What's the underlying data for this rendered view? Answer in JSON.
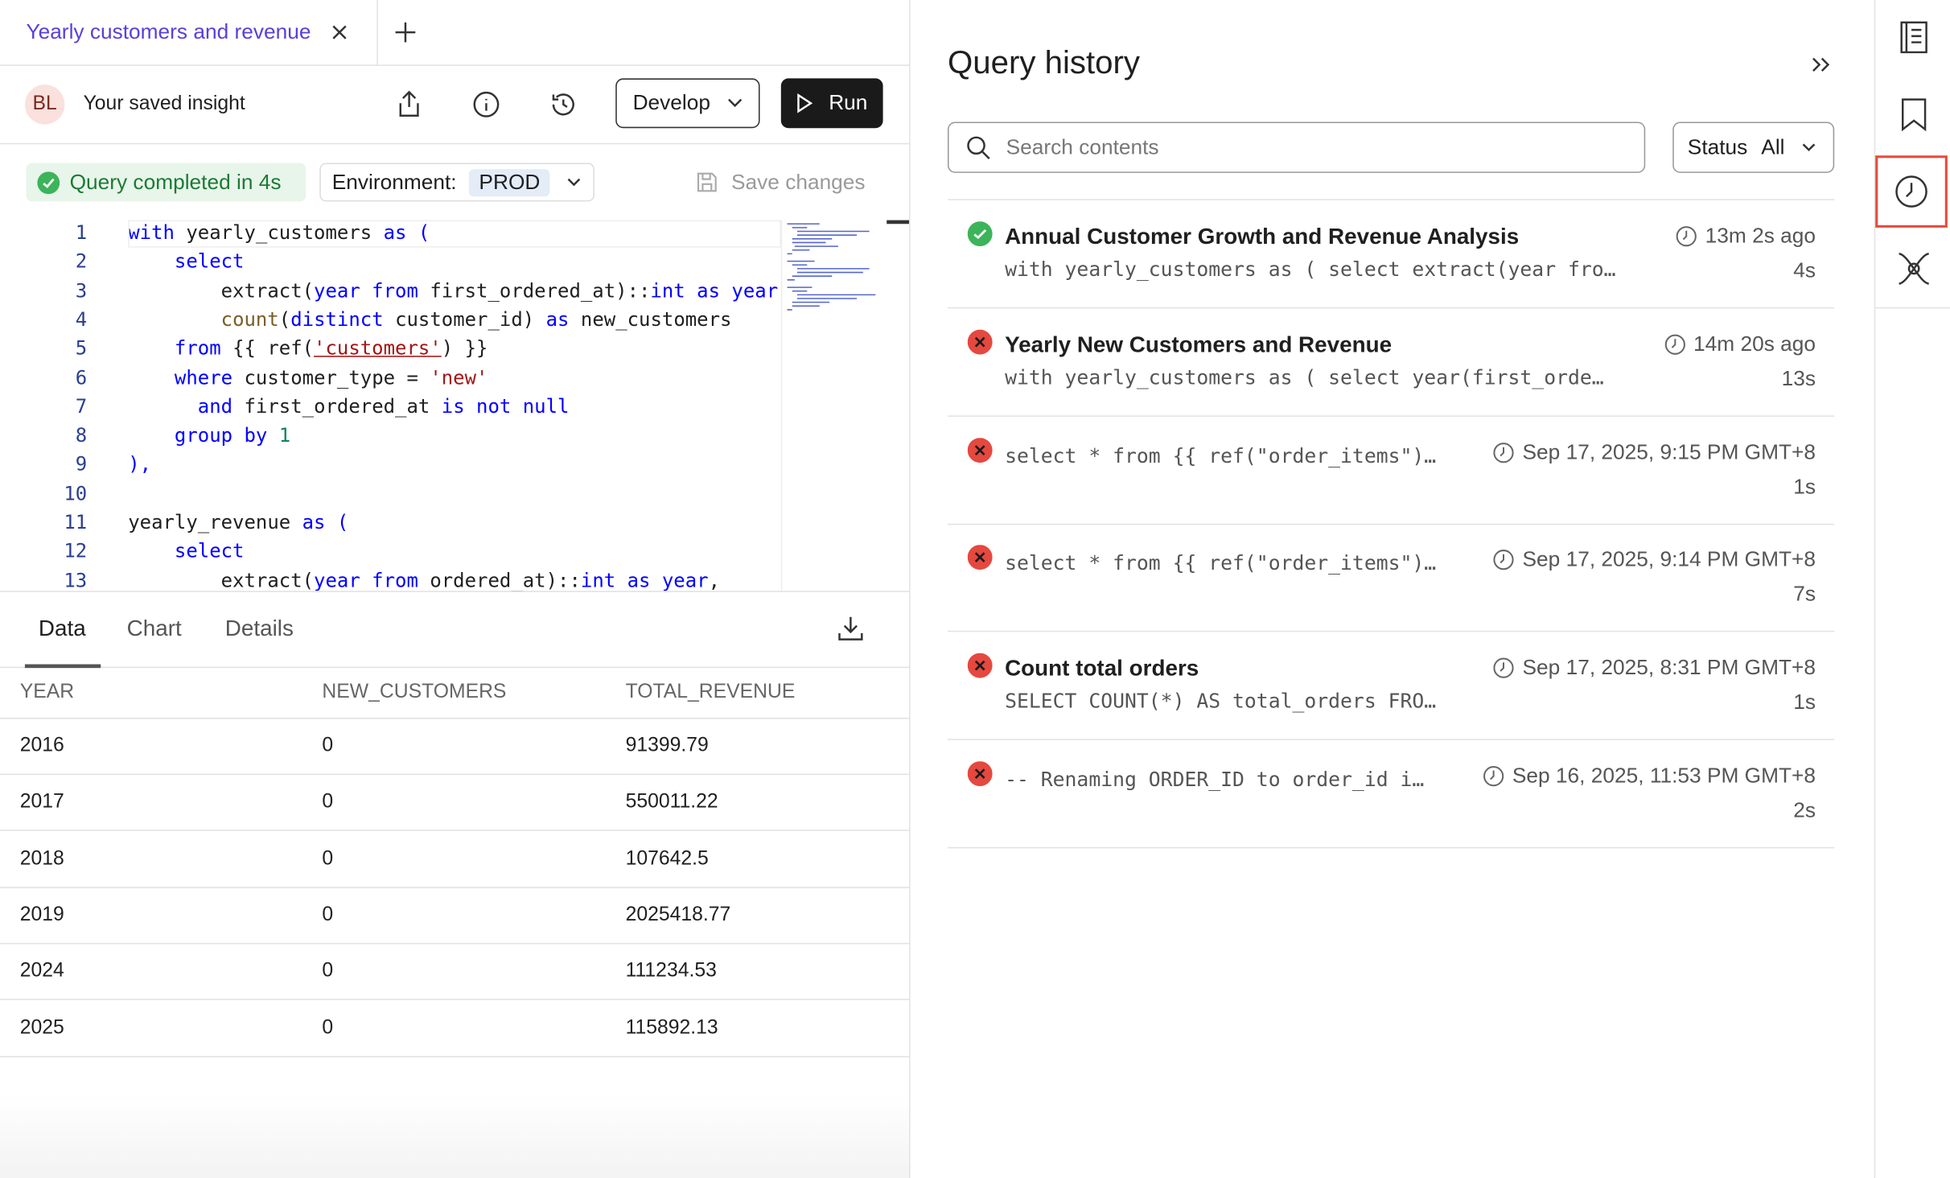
{
  "tab": {
    "title": "Yearly customers and revenue"
  },
  "header": {
    "avatar": "BL",
    "insight_name": "Your saved insight",
    "mode_button": "Develop",
    "run_button": "Run"
  },
  "status_bar": {
    "status": "Query completed in 4s",
    "environment_label": "Environment:",
    "environment": "PROD",
    "save_button": "Save changes"
  },
  "code": {
    "lines": [
      {
        "number": 1,
        "tokens": [
          {
            "text": "with",
            "color": "#0000ff"
          },
          {
            "text": " yearly_customers ",
            "color": "#1f1f1f"
          },
          {
            "text": "as (",
            "color": "#0000ff"
          }
        ]
      },
      {
        "number": 2,
        "tokens": [
          {
            "text": "    select",
            "color": "#0000ff"
          }
        ]
      },
      {
        "number": 3,
        "tokens": [
          {
            "text": "        extract(",
            "color": "#1f1f1f"
          },
          {
            "text": "year from",
            "color": "#0000ff"
          },
          {
            "text": " first_ordered_at)::",
            "color": "#1f1f1f"
          },
          {
            "text": "int as year",
            "color": "#0000ff"
          },
          {
            "text": ",",
            "color": "#1f1f1f"
          }
        ]
      },
      {
        "number": 4,
        "tokens": [
          {
            "text": "        ",
            "color": "#1f1f1f"
          },
          {
            "text": "count",
            "color": "#795e26"
          },
          {
            "text": "(",
            "color": "#1f1f1f"
          },
          {
            "text": "distinct",
            "color": "#0000ff"
          },
          {
            "text": " customer_id) ",
            "color": "#1f1f1f"
          },
          {
            "text": "as",
            "color": "#0000ff"
          },
          {
            "text": " new_customers",
            "color": "#1f1f1f"
          }
        ]
      },
      {
        "number": 5,
        "tokens": [
          {
            "text": "    from",
            "color": "#0000ff"
          },
          {
            "text": " {{ ref(",
            "color": "#1f1f1f"
          },
          {
            "text": "'customers'",
            "color": "#a31515"
          },
          {
            "text": ") }}",
            "color": "#1f1f1f"
          }
        ]
      },
      {
        "number": 6,
        "tokens": [
          {
            "text": "    where",
            "color": "#0000ff"
          },
          {
            "text": " customer_type = ",
            "color": "#1f1f1f"
          },
          {
            "text": "'new'",
            "color": "#a31515"
          }
        ]
      },
      {
        "number": 7,
        "tokens": [
          {
            "text": "      and",
            "color": "#0000ff"
          },
          {
            "text": " first_ordered_at ",
            "color": "#1f1f1f"
          },
          {
            "text": "is not null",
            "color": "#0000ff"
          }
        ]
      },
      {
        "number": 8,
        "tokens": [
          {
            "text": "    group by",
            "color": "#0000ff"
          },
          {
            "text": " 1",
            "color": "#098658"
          }
        ]
      },
      {
        "number": 9,
        "tokens": [
          {
            "text": "),",
            "color": "#0000ff"
          }
        ]
      },
      {
        "number": 10,
        "tokens": []
      },
      {
        "number": 11,
        "tokens": [
          {
            "text": "yearly_revenue ",
            "color": "#1f1f1f"
          },
          {
            "text": "as (",
            "color": "#0000ff"
          }
        ]
      },
      {
        "number": 12,
        "tokens": [
          {
            "text": "    select",
            "color": "#0000ff"
          }
        ]
      },
      {
        "number": 13,
        "tokens": [
          {
            "text": "        extract(",
            "color": "#1f1f1f"
          },
          {
            "text": "year from",
            "color": "#0000ff"
          },
          {
            "text": " ordered_at)::",
            "color": "#1f1f1f"
          },
          {
            "text": "int as year",
            "color": "#0000ff"
          },
          {
            "text": ",",
            "color": "#1f1f1f"
          }
        ]
      }
    ]
  },
  "result_tabs": [
    "Data",
    "Chart",
    "Details"
  ],
  "table": {
    "columns": [
      "YEAR",
      "NEW_CUSTOMERS",
      "TOTAL_REVENUE"
    ],
    "rows": [
      [
        2016,
        0,
        91399.79
      ],
      [
        2017,
        0,
        550011.22
      ],
      [
        2018,
        0,
        107642.5
      ],
      [
        2019,
        0,
        2025418.77
      ],
      [
        2024,
        0,
        111234.53
      ],
      [
        2025,
        0,
        115892.13
      ]
    ]
  },
  "history": {
    "title": "Query history",
    "search_placeholder": "Search contents",
    "status_filter_label": "Status",
    "status_filter_value": "All",
    "items": [
      {
        "status": "success",
        "title": "Annual Customer Growth and Revenue Analysis",
        "snippet": "with yearly_customers as ( select extract(year fro…",
        "time": "13m 2s ago",
        "duration": "4s"
      },
      {
        "status": "error",
        "title": "Yearly New Customers and Revenue",
        "snippet": "with yearly_customers as ( select year(first_orde…",
        "time": "14m 20s ago",
        "duration": "13s"
      },
      {
        "status": "error",
        "snippet": "select * from {{ ref(\"order_items\")…",
        "time": "Sep 17, 2025, 9:15 PM GMT+8",
        "duration": "1s"
      },
      {
        "status": "error",
        "snippet": "select * from {{ ref(\"order_items\")…",
        "time": "Sep 17, 2025, 9:14 PM GMT+8",
        "duration": "7s"
      },
      {
        "status": "error",
        "title": "Count total orders",
        "snippet": "SELECT COUNT(*) AS total_orders FRO…",
        "time": "Sep 17, 2025, 8:31 PM GMT+8",
        "duration": "1s"
      },
      {
        "status": "error",
        "snippet": "-- Renaming ORDER_ID to order_id i…",
        "time": "Sep 16, 2025, 11:53 PM GMT+8",
        "duration": "2s"
      }
    ]
  }
}
